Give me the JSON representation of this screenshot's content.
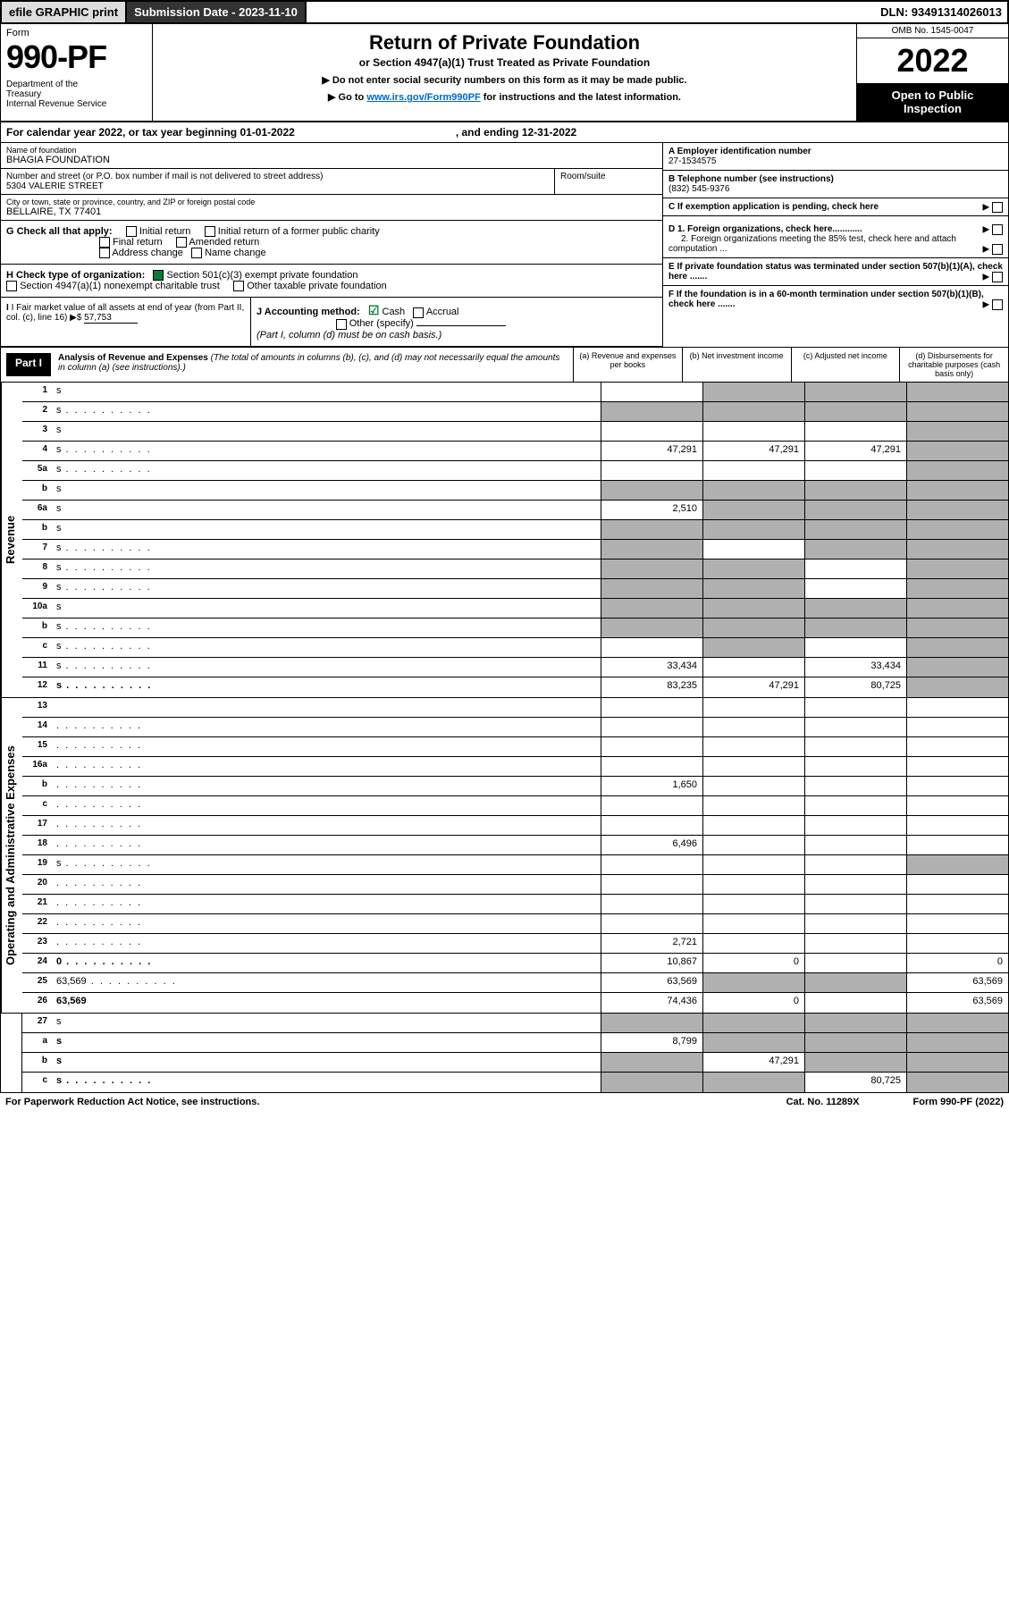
{
  "topbar": {
    "efile": "efile GRAPHIC print",
    "submission": "Submission Date - 2023-11-10",
    "dln": "DLN: 93491314026013"
  },
  "header": {
    "form_label": "Form",
    "form_number": "990-PF",
    "dept": "Department of the Treasury\nInternal Revenue Service",
    "title": "Return of Private Foundation",
    "subtitle": "or Section 4947(a)(1) Trust Treated as Private Foundation",
    "instruct1": "▶ Do not enter social security numbers on this form as it may be made public.",
    "instruct2": "▶ Go to ",
    "instruct_link": "www.irs.gov/Form990PF",
    "instruct2b": " for instructions and the latest information.",
    "omb": "OMB No. 1545-0047",
    "year": "2022",
    "open": "Open to Public Inspection"
  },
  "calendar": {
    "text": "For calendar year 2022, or tax year beginning 01-01-2022",
    "ending": ", and ending 12-31-2022"
  },
  "info": {
    "name_label": "Name of foundation",
    "name": "BHAGIA FOUNDATION",
    "addr_label": "Number and street (or P.O. box number if mail is not delivered to street address)",
    "addr": "5304 VALERIE STREET",
    "room_label": "Room/suite",
    "city_label": "City or town, state or province, country, and ZIP or foreign postal code",
    "city": "BELLAIRE, TX  77401",
    "a_label": "A Employer identification number",
    "a_val": "27-1534575",
    "b_label": "B Telephone number (see instructions)",
    "b_val": "(832) 545-9376",
    "c_label": "C If exemption application is pending, check here",
    "d1_label": "D 1. Foreign organizations, check here............",
    "d2_label": "2. Foreign organizations meeting the 85% test, check here and attach computation ...",
    "e_label": "E  If private foundation status was terminated under section 507(b)(1)(A), check here .......",
    "f_label": "F  If the foundation is in a 60-month termination under section 507(b)(1)(B), check here ......."
  },
  "checks": {
    "g_label": "G Check all that apply:",
    "g_opts": [
      "Initial return",
      "Initial return of a former public charity",
      "Final return",
      "Amended return",
      "Address change",
      "Name change"
    ],
    "h_label": "H Check type of organization:",
    "h_opt1": "Section 501(c)(3) exempt private foundation",
    "h_opt2": "Section 4947(a)(1) nonexempt charitable trust",
    "h_opt3": "Other taxable private foundation",
    "i_label": "I Fair market value of all assets at end of year (from Part II, col. (c), line 16)",
    "i_val": "57,753",
    "j_label": "J Accounting method:",
    "j_cash": "Cash",
    "j_accrual": "Accrual",
    "j_other": "Other (specify)",
    "j_note": "(Part I, column (d) must be on cash basis.)"
  },
  "part1": {
    "label": "Part I",
    "title": "Analysis of Revenue and Expenses",
    "note": "(The total of amounts in columns (b), (c), and (d) may not necessarily equal the amounts in column (a) (see instructions).)",
    "col_a": "(a)    Revenue and expenses per books",
    "col_b": "(b)    Net investment income",
    "col_c": "(c)    Adjusted net income",
    "col_d": "(d)   Disbursements for charitable purposes (cash basis only)"
  },
  "side_labels": {
    "revenue": "Revenue",
    "expenses": "Operating and Administrative Expenses"
  },
  "rows": [
    {
      "n": "1",
      "d": "s",
      "a": "",
      "b": "s",
      "c": "s"
    },
    {
      "n": "2",
      "d": "s",
      "dots": true,
      "a": "s",
      "b": "s",
      "c": "s"
    },
    {
      "n": "3",
      "d": "s",
      "a": "",
      "b": "",
      "c": ""
    },
    {
      "n": "4",
      "d": "s",
      "dots": true,
      "a": "47,291",
      "b": "47,291",
      "c": "47,291"
    },
    {
      "n": "5a",
      "d": "s",
      "dots": true,
      "a": "",
      "b": "",
      "c": ""
    },
    {
      "n": "b",
      "d": "s",
      "a": "s",
      "b": "s",
      "c": "s"
    },
    {
      "n": "6a",
      "d": "s",
      "a": "2,510",
      "b": "s",
      "c": "s"
    },
    {
      "n": "b",
      "d": "s",
      "a": "s",
      "b": "s",
      "c": "s"
    },
    {
      "n": "7",
      "d": "s",
      "dots": true,
      "a": "s",
      "b": "",
      "c": "s"
    },
    {
      "n": "8",
      "d": "s",
      "dots": true,
      "a": "s",
      "b": "s",
      "c": ""
    },
    {
      "n": "9",
      "d": "s",
      "dots": true,
      "a": "s",
      "b": "s",
      "c": ""
    },
    {
      "n": "10a",
      "d": "s",
      "a": "s",
      "b": "s",
      "c": "s"
    },
    {
      "n": "b",
      "d": "s",
      "dots": true,
      "a": "s",
      "b": "s",
      "c": "s"
    },
    {
      "n": "c",
      "d": "s",
      "dots": true,
      "a": "",
      "b": "s",
      "c": ""
    },
    {
      "n": "11",
      "d": "s",
      "dots": true,
      "a": "33,434",
      "b": "",
      "c": "33,434"
    },
    {
      "n": "12",
      "d": "s",
      "dots": true,
      "bold": true,
      "a": "83,235",
      "b": "47,291",
      "c": "80,725"
    }
  ],
  "rows2": [
    {
      "n": "13",
      "d": "",
      "a": "",
      "b": "",
      "c": ""
    },
    {
      "n": "14",
      "d": "",
      "dots": true,
      "a": "",
      "b": "",
      "c": ""
    },
    {
      "n": "15",
      "d": "",
      "dots": true,
      "a": "",
      "b": "",
      "c": ""
    },
    {
      "n": "16a",
      "d": "",
      "dots": true,
      "a": "",
      "b": "",
      "c": ""
    },
    {
      "n": "b",
      "d": "",
      "dots": true,
      "a": "1,650",
      "b": "",
      "c": ""
    },
    {
      "n": "c",
      "d": "",
      "dots": true,
      "a": "",
      "b": "",
      "c": ""
    },
    {
      "n": "17",
      "d": "",
      "dots": true,
      "a": "",
      "b": "",
      "c": ""
    },
    {
      "n": "18",
      "d": "",
      "dots": true,
      "a": "6,496",
      "b": "",
      "c": ""
    },
    {
      "n": "19",
      "d": "s",
      "dots": true,
      "a": "",
      "b": "",
      "c": ""
    },
    {
      "n": "20",
      "d": "",
      "dots": true,
      "a": "",
      "b": "",
      "c": ""
    },
    {
      "n": "21",
      "d": "",
      "dots": true,
      "a": "",
      "b": "",
      "c": ""
    },
    {
      "n": "22",
      "d": "",
      "dots": true,
      "a": "",
      "b": "",
      "c": ""
    },
    {
      "n": "23",
      "d": "",
      "dots": true,
      "a": "2,721",
      "b": "",
      "c": ""
    },
    {
      "n": "24",
      "d": "0",
      "dots": true,
      "bold": true,
      "a": "10,867",
      "b": "0",
      "c": ""
    },
    {
      "n": "25",
      "d": "63,569",
      "dots": true,
      "a": "63,569",
      "b": "s",
      "c": "s"
    },
    {
      "n": "26",
      "d": "63,569",
      "bold": true,
      "a": "74,436",
      "b": "0",
      "c": ""
    }
  ],
  "rows3": [
    {
      "n": "27",
      "d": "s",
      "a": "s",
      "b": "s",
      "c": "s"
    },
    {
      "n": "a",
      "d": "s",
      "bold": true,
      "a": "8,799",
      "b": "s",
      "c": "s"
    },
    {
      "n": "b",
      "d": "s",
      "bold": true,
      "a": "s",
      "b": "47,291",
      "c": "s"
    },
    {
      "n": "c",
      "d": "s",
      "bold": true,
      "dots": true,
      "a": "s",
      "b": "s",
      "c": "80,725"
    }
  ],
  "footer": {
    "left": "For Paperwork Reduction Act Notice, see instructions.",
    "mid": "Cat. No. 11289X",
    "right": "Form 990-PF (2022)"
  },
  "colors": {
    "green": "#0a7a3a",
    "shade": "#b0b0b0",
    "link": "#0066cc"
  }
}
